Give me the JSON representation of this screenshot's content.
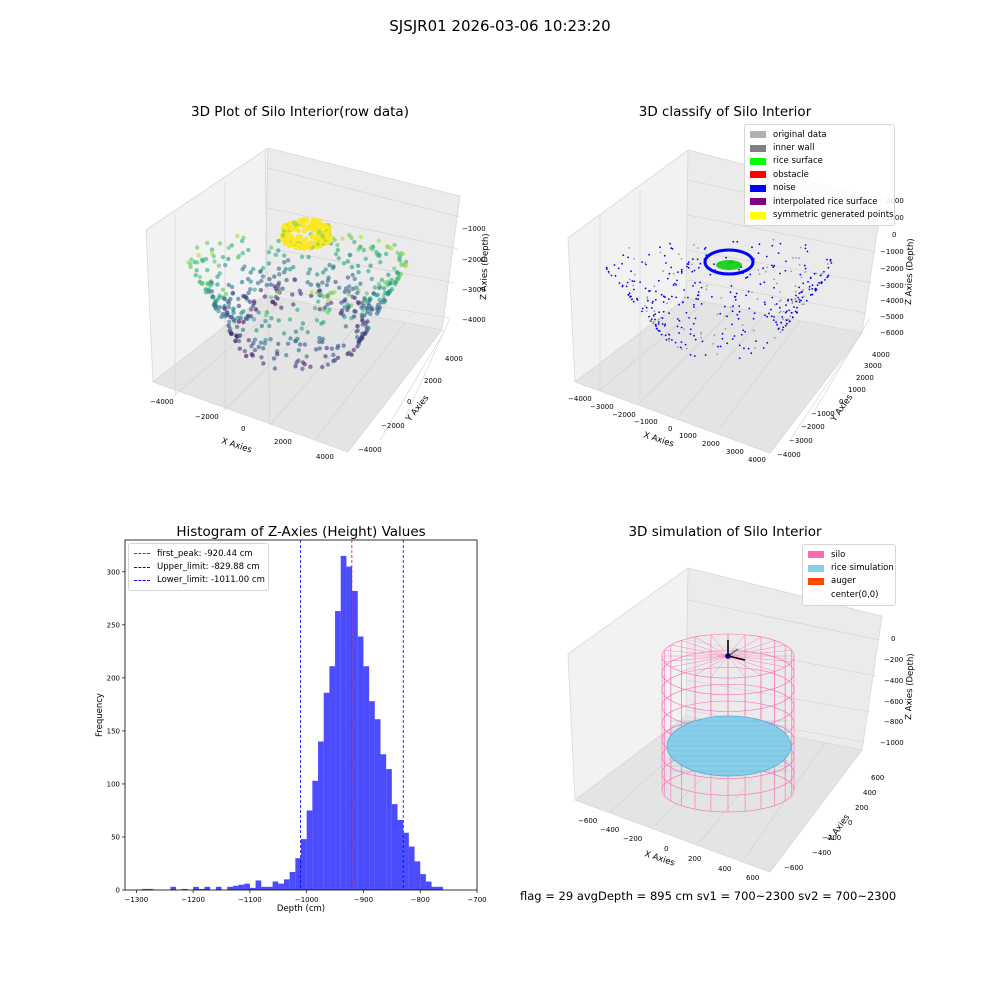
{
  "figure": {
    "title": "SJSJR01 2026-03-06 10:23:20",
    "status_line": "flag = 29  avgDepth = 895 cm  sv1 = 700~2300  sv2 = 700~2300"
  },
  "panels": {
    "raw": {
      "title": "3D Plot of Silo Interior(row data)",
      "xlabel": "X Axies",
      "ylabel": "Y Axies",
      "zlabel": "Z Axies (Depth)",
      "xticks": [
        "−4000",
        "−2000",
        "0",
        "2000",
        "4000"
      ],
      "yticks": [
        "−4000",
        "−2000",
        "0",
        "2000",
        "4000"
      ],
      "zticks": [
        "−1000",
        "−2000",
        "−3000",
        "−4000"
      ]
    },
    "classify": {
      "title": "3D classify of Silo Interior",
      "xlabel": "X Axies",
      "ylabel": "Y Axies",
      "zlabel": "Z Axies (Depth)",
      "xticks": [
        "−4000",
        "−3000",
        "−2000",
        "−1000",
        "0",
        "1000",
        "2000",
        "3000",
        "4000"
      ],
      "yticks": [
        "−4000",
        "−3000",
        "−2000",
        "−1000",
        "0",
        "1000",
        "2000",
        "3000",
        "4000"
      ],
      "zticks": [
        "2000",
        "1000",
        "0",
        "−1000",
        "−2000",
        "−3000",
        "−4000",
        "−5000",
        "−6000"
      ],
      "legend": [
        {
          "label": "original data",
          "color": "#b0b0b0"
        },
        {
          "label": "inner wall",
          "color": "#808080"
        },
        {
          "label": "rice surface",
          "color": "#00ff00"
        },
        {
          "label": "obstacle",
          "color": "#ff0000"
        },
        {
          "label": "noise",
          "color": "#0000ff"
        },
        {
          "label": "interpolated rice surface",
          "color": "#800080"
        },
        {
          "label": "symmetric generated points",
          "color": "#ffff00"
        }
      ]
    },
    "simulation": {
      "title": "3D simulation of Silo Interior",
      "xlabel": "X Axies",
      "ylabel": "Y Axies",
      "zlabel": "Z Axies (Depth)",
      "xticks": [
        "−600",
        "−400",
        "−200",
        "0",
        "200",
        "400",
        "600"
      ],
      "yticks": [
        "−600",
        "−400",
        "−200",
        "0",
        "200",
        "400",
        "600"
      ],
      "zticks": [
        "0",
        "−200",
        "−400",
        "−600",
        "−800",
        "−1000"
      ],
      "legend": [
        {
          "label": "silo",
          "color": "#ff69b4"
        },
        {
          "label": "rice simulation",
          "color": "#87ceeb"
        },
        {
          "label": "auger",
          "color": "#ff4500"
        },
        {
          "label": "center(0,0)",
          "color": ""
        }
      ]
    }
  },
  "chart_data": {
    "type": "bar",
    "title": "Histogram of Z-Axies (Height) Values",
    "xlabel": "Depth (cm)",
    "ylabel": "Frequency",
    "xlim": [
      -1320,
      -700
    ],
    "ylim": [
      0,
      330
    ],
    "xticks": [
      -1300,
      -1200,
      -1100,
      -1000,
      -900,
      -800,
      -700
    ],
    "yticks": [
      0,
      50,
      100,
      150,
      200,
      250,
      300
    ],
    "bar_color": "#0000ff",
    "bin_width": 10,
    "bin_starts": [
      -1300,
      -1290,
      -1280,
      -1270,
      -1260,
      -1250,
      -1240,
      -1230,
      -1220,
      -1210,
      -1200,
      -1190,
      -1180,
      -1170,
      -1160,
      -1150,
      -1140,
      -1130,
      -1120,
      -1110,
      -1100,
      -1090,
      -1080,
      -1070,
      -1060,
      -1050,
      -1040,
      -1030,
      -1020,
      -1010,
      -1000,
      -990,
      -980,
      -970,
      -960,
      -950,
      -940,
      -930,
      -920,
      -910,
      -900,
      -890,
      -880,
      -870,
      -860,
      -850,
      -840,
      -830,
      -820,
      -810,
      -800,
      -790,
      -780,
      -770,
      -760,
      -750,
      -740
    ],
    "values": [
      0,
      1,
      1,
      0,
      0,
      0,
      3,
      0,
      1,
      0,
      3,
      1,
      3,
      0,
      3,
      0,
      3,
      4,
      5,
      6,
      2,
      9,
      3,
      3,
      8,
      6,
      10,
      17,
      30,
      48,
      75,
      103,
      140,
      186,
      211,
      263,
      315,
      305,
      282,
      239,
      211,
      178,
      161,
      128,
      114,
      81,
      66,
      54,
      41,
      27,
      15,
      8,
      3,
      3,
      0,
      0,
      0
    ],
    "vlines": [
      {
        "label": "first_peak: -920.44 cm",
        "x": -920.44,
        "color": "#ff0000"
      },
      {
        "label": "Upper_limit: -829.88 cm",
        "x": -829.88,
        "color": "#0000ff"
      },
      {
        "label": "Lower_limit: -1011.00 cm",
        "x": -1011.0,
        "color": "#0000ff"
      }
    ],
    "legend_position": "upper left",
    "grid": false
  }
}
